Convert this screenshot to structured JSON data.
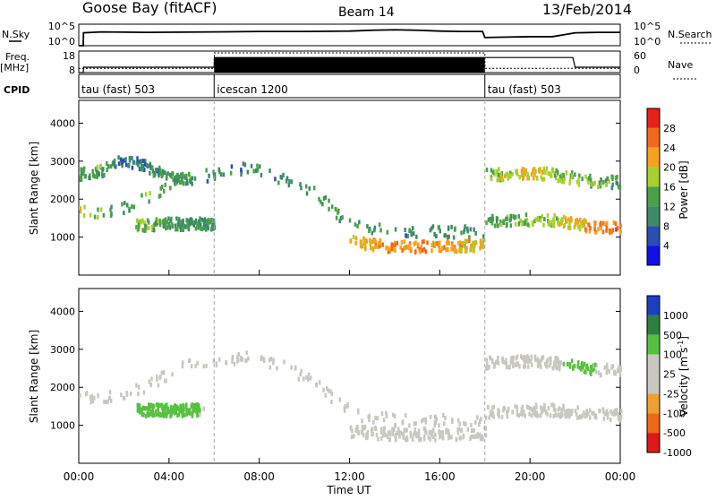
{
  "header": {
    "station": "Goose Bay (fitACF)",
    "beam": "Beam 14",
    "date": "13/Feb/2014"
  },
  "side_labels": {
    "nsky": "N.Sky",
    "nsearch": "N.Search",
    "freq_top": "Freq.",
    "freq_unit": "[MHz]",
    "nave": "Nave",
    "cpid": "CPID"
  },
  "noise_axis": {
    "left_ticks": [
      "10^5",
      "10^0"
    ],
    "right_ticks": [
      "10^5",
      "10^0"
    ]
  },
  "freq_axis": {
    "left_ticks": [
      "18",
      "8"
    ],
    "right_ticks": [
      "60",
      "0"
    ]
  },
  "cpid_segments": [
    {
      "label": "tau (fast) 503",
      "start": 0,
      "end": 6
    },
    {
      "label": "icescan 1200",
      "start": 6,
      "end": 18
    },
    {
      "label": "tau (fast) 503",
      "start": 18,
      "end": 24
    }
  ],
  "power_colorbar": {
    "title": "Power [dB]",
    "ticks": [
      "28",
      "24",
      "20",
      "16",
      "12",
      "8",
      "4"
    ],
    "colors": [
      "#e8221b",
      "#f06a1e",
      "#f5a21c",
      "#a8d030",
      "#4ca04a",
      "#3d8a6a",
      "#2a4fb0",
      "#1010e8"
    ]
  },
  "velocity_colorbar": {
    "title": "Velocity [m s",
    "title_sup": "-1",
    "title_end": "]",
    "ticks": [
      "1000",
      "500",
      "100",
      "25",
      "-25",
      "-100",
      "-500",
      "-1000"
    ],
    "colors": [
      "#1b3fc0",
      "#2f8040",
      "#58c040",
      "#c8c8c0",
      "#c8c8c0",
      "#f0a030",
      "#f06818",
      "#e01818"
    ]
  },
  "chart_data": [
    {
      "type": "line",
      "title": "N.Sky / N.Search",
      "x_range": [
        0,
        24
      ],
      "ylim_log10": [
        0,
        5
      ],
      "series": [
        {
          "name": "N.Sky",
          "x": [
            0,
            0.2,
            0.21,
            1,
            3,
            6,
            8,
            10,
            12,
            13,
            14,
            15,
            16,
            17,
            17.9,
            18,
            19,
            20,
            21,
            22,
            23,
            24
          ],
          "y_log10": [
            0,
            0,
            3.0,
            3.2,
            3.1,
            3.2,
            3.3,
            3.3,
            3.4,
            3.6,
            3.7,
            3.6,
            3.4,
            3.3,
            3.3,
            1.9,
            2.0,
            2.1,
            2.1,
            3.0,
            3.1,
            3.1
          ]
        }
      ]
    },
    {
      "type": "line",
      "title": "Freq. / Nave",
      "x_range": [
        0,
        24
      ],
      "freq_ylim": [
        8,
        18
      ],
      "nave_ylim": [
        0,
        60
      ],
      "series": [
        {
          "name": "Freq.",
          "x": [
            0,
            0.2,
            0.21,
            6,
            6.01,
            18,
            18.01,
            21.9,
            22,
            24
          ],
          "y": [
            8,
            8,
            10.5,
            10.5,
            15,
            15,
            15,
            15,
            10.5,
            10.5
          ]
        },
        {
          "name": "Nave",
          "x": [
            0,
            6,
            6.01,
            18,
            18.01,
            21.9,
            22,
            24
          ],
          "y": [
            12,
            12,
            55,
            55,
            12,
            12,
            12,
            12
          ]
        }
      ]
    },
    {
      "type": "heatmap",
      "title": "Power [dB]",
      "ylabel": "Slant Range [km]",
      "x_range": [
        0,
        24
      ],
      "ylim": [
        0,
        4600
      ],
      "yticks": [
        1000,
        2000,
        3000,
        4000
      ],
      "scatter_bands": [
        {
          "x": [
            0,
            1.5,
            3,
            4.5,
            6,
            7.5,
            9,
            10.5,
            11.5,
            12.5,
            14,
            16,
            18
          ],
          "range_km": [
            1700,
            1700,
            2100,
            2600,
            2700,
            2900,
            2600,
            2200,
            1600,
            1300,
            1200,
            1200,
            1200
          ],
          "power_db": [
            20,
            12,
            16,
            12,
            10,
            10,
            10,
            12,
            14,
            12,
            10,
            10,
            12
          ]
        },
        {
          "x": [
            0,
            1,
            2,
            3,
            4,
            5
          ],
          "range_km": [
            2700,
            2800,
            3100,
            2900,
            2600,
            2600
          ],
          "power_db": [
            12,
            14,
            8,
            10,
            12,
            14
          ]
        },
        {
          "x": [
            2.5,
            3.5,
            4.5,
            5.5,
            6
          ],
          "range_km": [
            1350,
            1400,
            1400,
            1400,
            1400
          ],
          "power_db": [
            16,
            14,
            12,
            12,
            10
          ]
        },
        {
          "x": [
            12,
            13,
            14,
            15,
            16,
            17,
            18
          ],
          "range_km": [
            950,
            850,
            800,
            800,
            800,
            820,
            850
          ],
          "power_db": [
            20,
            22,
            24,
            24,
            22,
            22,
            20
          ]
        },
        {
          "x": [
            18,
            19,
            20,
            21,
            22,
            23,
            24
          ],
          "range_km": [
            1500,
            1500,
            1500,
            1500,
            1400,
            1300,
            1300
          ],
          "power_db": [
            12,
            14,
            16,
            18,
            20,
            24,
            26
          ]
        },
        {
          "x": [
            18,
            19,
            20,
            21,
            22,
            23,
            24
          ],
          "range_km": [
            2700,
            2700,
            2750,
            2700,
            2600,
            2500,
            2500
          ],
          "power_db": [
            16,
            18,
            20,
            18,
            16,
            14,
            14
          ]
        }
      ]
    },
    {
      "type": "heatmap",
      "title": "Velocity [m s-1]",
      "ylabel": "Slant Range [km]",
      "xlabel": "Time UT",
      "x_range": [
        0,
        24
      ],
      "xticks": [
        "00:00",
        "04:00",
        "08:00",
        "12:00",
        "16:00",
        "20:00",
        "00:00"
      ],
      "ylim": [
        0,
        4600
      ],
      "yticks": [
        1000,
        2000,
        3000,
        4000
      ],
      "scatter_bands": [
        {
          "x": [
            0,
            1.5,
            3,
            4.5,
            6,
            7.5,
            9,
            10.5,
            11.5,
            12.5,
            14,
            16,
            18
          ],
          "range_km": [
            1800,
            1800,
            2100,
            2600,
            2700,
            2900,
            2600,
            2200,
            1600,
            1300,
            1200,
            1200,
            1200
          ],
          "velocity": [
            0,
            0,
            0,
            0,
            0,
            0,
            0,
            0,
            0,
            0,
            0,
            0,
            0
          ]
        },
        {
          "x": [
            2.5,
            3.5,
            4.5,
            5.5
          ],
          "range_km": [
            1450,
            1450,
            1450,
            1450
          ],
          "velocity": [
            150,
            150,
            100,
            50
          ]
        },
        {
          "x": [
            12,
            13,
            14,
            15,
            16,
            17,
            18
          ],
          "range_km": [
            900,
            850,
            820,
            820,
            820,
            830,
            850
          ],
          "velocity": [
            0,
            0,
            0,
            0,
            0,
            0,
            0
          ]
        },
        {
          "x": [
            18,
            19,
            20,
            21,
            22,
            23,
            24
          ],
          "range_km": [
            1400,
            1400,
            1450,
            1450,
            1400,
            1350,
            1300
          ],
          "velocity": [
            0,
            0,
            0,
            0,
            0,
            0,
            0
          ]
        },
        {
          "x": [
            18,
            19,
            20,
            21,
            22,
            23,
            24
          ],
          "range_km": [
            2700,
            2700,
            2750,
            2700,
            2600,
            2500,
            2500
          ],
          "velocity": [
            0,
            0,
            25,
            25,
            100,
            50,
            50
          ]
        }
      ]
    }
  ]
}
